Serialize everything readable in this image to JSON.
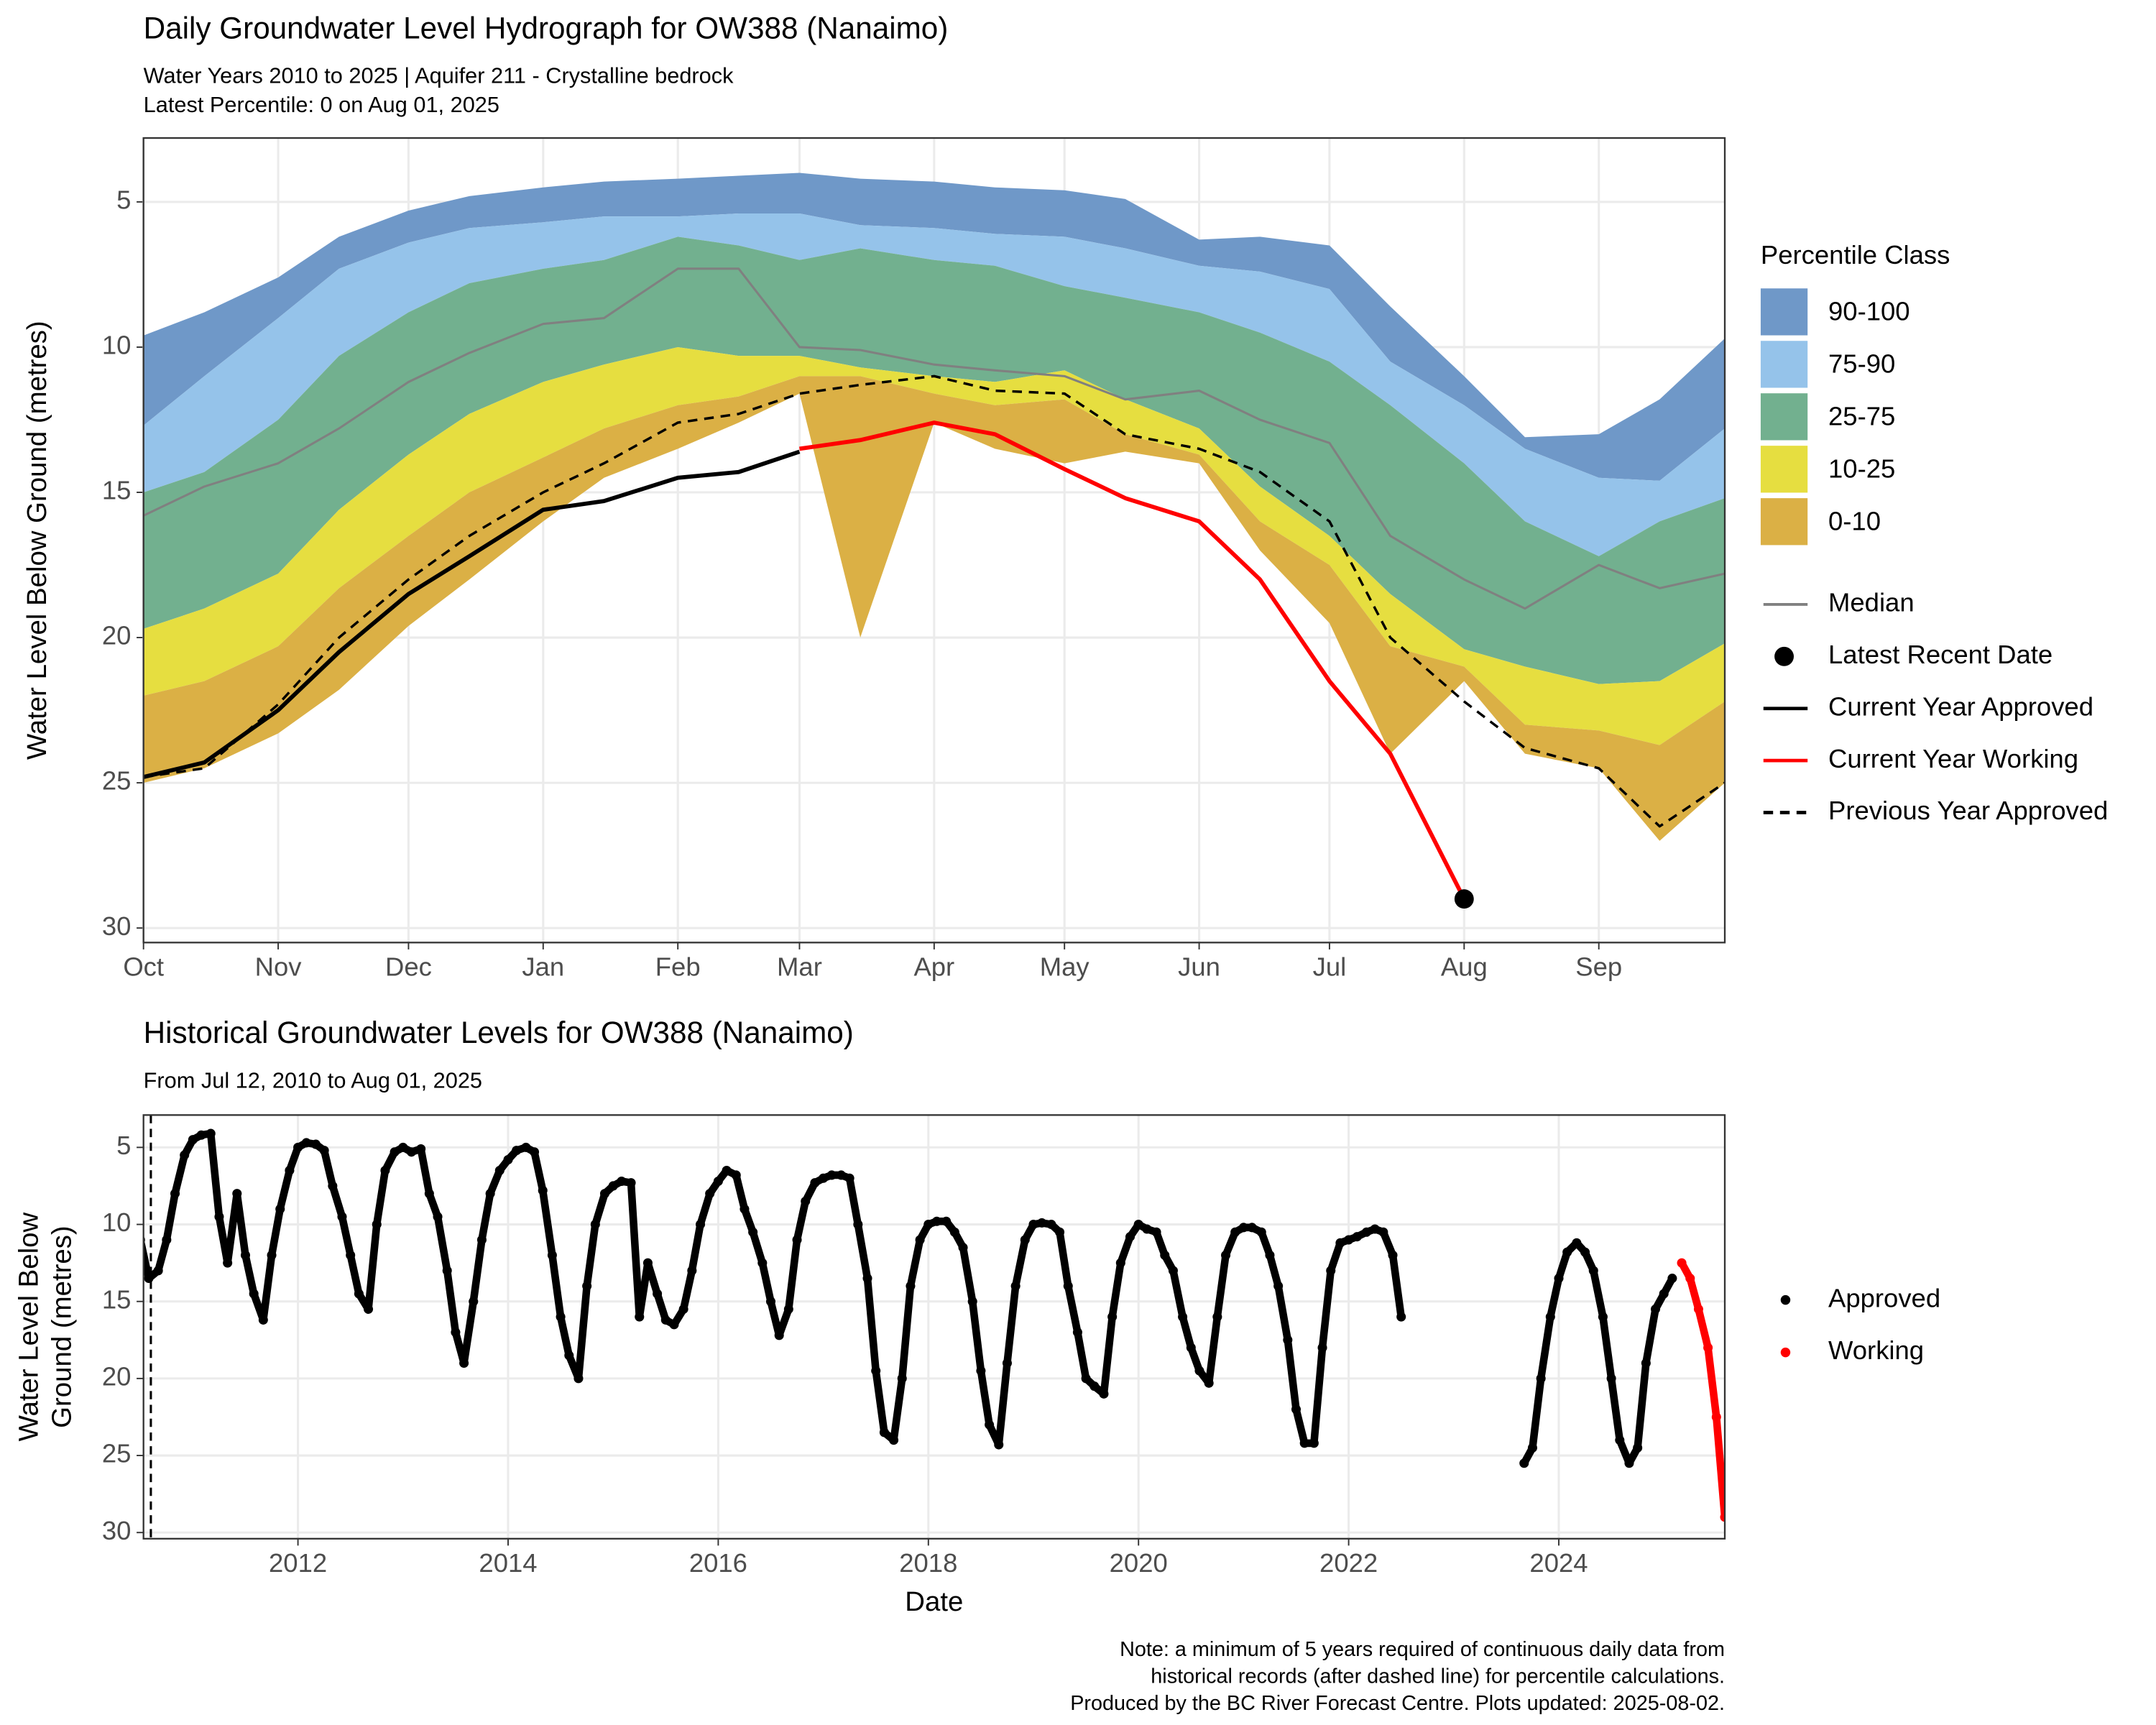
{
  "chart_data": [
    {
      "type": "area",
      "title": "Daily Groundwater Level Hydrograph for OW388 (Nanaimo)",
      "subtitle": [
        "Water Years 2010 to 2025 | Aquifer 211 - Crystalline bedrock",
        "Latest Percentile: 0 on Aug 01, 2025"
      ],
      "y_label": "Water Level Below Ground (metres)",
      "x": [
        "2024-10-01",
        "2024-10-15",
        "2024-11-01",
        "2024-11-15",
        "2024-12-01",
        "2024-12-15",
        "2025-01-01",
        "2025-01-15",
        "2025-02-01",
        "2025-02-15",
        "2025-03-01",
        "2025-03-15",
        "2025-04-01",
        "2025-04-15",
        "2025-05-01",
        "2025-05-15",
        "2025-06-01",
        "2025-06-15",
        "2025-07-01",
        "2025-07-15",
        "2025-08-01",
        "2025-08-15",
        "2025-09-01",
        "2025-09-15",
        "2025-09-30"
      ],
      "xlim": [
        "2024-10-01",
        "2025-09-30"
      ],
      "xticks": [
        {
          "value": "2024-10-01",
          "label": "Oct"
        },
        {
          "value": "2024-11-01",
          "label": "Nov"
        },
        {
          "value": "2024-12-01",
          "label": "Dec"
        },
        {
          "value": "2025-01-01",
          "label": "Jan"
        },
        {
          "value": "2025-02-01",
          "label": "Feb"
        },
        {
          "value": "2025-03-01",
          "label": "Mar"
        },
        {
          "value": "2025-04-01",
          "label": "Apr"
        },
        {
          "value": "2025-05-01",
          "label": "May"
        },
        {
          "value": "2025-06-01",
          "label": "Jun"
        },
        {
          "value": "2025-07-01",
          "label": "Jul"
        },
        {
          "value": "2025-08-01",
          "label": "Aug"
        },
        {
          "value": "2025-09-01",
          "label": "Sep"
        }
      ],
      "ylim": [
        2.8,
        30.5
      ],
      "yticks": [
        5,
        10,
        15,
        20,
        25,
        30
      ],
      "y_reversed": true,
      "grid": true,
      "legend_title": "Percentile Class",
      "bands": [
        {
          "name": "90-100",
          "color": "#6f98c8",
          "upper": [
            9.6,
            8.8,
            7.6,
            6.2,
            5.3,
            4.8,
            4.5,
            4.3,
            4.2,
            4.1,
            4.0,
            4.2,
            4.3,
            4.5,
            4.6,
            4.9,
            6.3,
            6.2,
            6.5,
            8.6,
            11.0,
            13.1,
            13.0,
            11.8,
            9.7
          ],
          "values": [
            12.7,
            11.0,
            9.0,
            7.3,
            6.4,
            5.9,
            5.7,
            5.5,
            5.5,
            5.4,
            5.4,
            5.8,
            5.9,
            6.1,
            6.2,
            6.6,
            7.2,
            7.4,
            8.0,
            10.5,
            12.0,
            13.5,
            14.5,
            14.6,
            12.8
          ]
        },
        {
          "name": "75-90",
          "color": "#95c3ea",
          "values": [
            15.0,
            14.3,
            12.5,
            10.3,
            8.8,
            7.8,
            7.3,
            7.0,
            6.2,
            6.5,
            7.0,
            6.6,
            7.0,
            7.2,
            7.9,
            8.3,
            8.8,
            9.5,
            10.5,
            12.0,
            14.0,
            16.0,
            17.2,
            16.0,
            15.2
          ]
        },
        {
          "name": "25-75",
          "color": "#72b08f",
          "values": [
            19.7,
            19.0,
            17.8,
            15.6,
            13.7,
            12.3,
            11.2,
            10.6,
            10.0,
            10.3,
            10.3,
            10.7,
            11.0,
            11.2,
            10.8,
            11.8,
            12.8,
            14.8,
            16.5,
            18.5,
            20.4,
            21.0,
            21.6,
            21.5,
            20.2
          ]
        },
        {
          "name": "10-25",
          "color": "#e6de40",
          "values": [
            22.0,
            21.5,
            20.3,
            18.3,
            16.5,
            15.0,
            13.8,
            12.8,
            12.0,
            11.7,
            11.0,
            11.0,
            11.6,
            12.0,
            11.8,
            13.0,
            13.7,
            16.0,
            17.5,
            20.3,
            21.0,
            23.0,
            23.2,
            23.7,
            22.2
          ]
        },
        {
          "name": "0-10",
          "color": "#dbb045",
          "values": [
            25.0,
            24.5,
            23.3,
            21.8,
            19.6,
            18.0,
            16.0,
            14.5,
            13.5,
            12.6,
            11.6,
            20.0,
            12.6,
            13.5,
            14.0,
            13.6,
            14.0,
            17.0,
            19.5,
            24.0,
            21.5,
            24.0,
            24.5,
            27.0,
            25.0
          ]
        }
      ],
      "series": [
        {
          "name": "Median",
          "color": "#808080",
          "values": [
            15.8,
            14.8,
            14.0,
            12.8,
            11.2,
            10.2,
            9.2,
            9.0,
            7.3,
            7.3,
            10.0,
            10.1,
            10.6,
            10.8,
            11.0,
            11.8,
            11.5,
            12.5,
            13.3,
            16.5,
            18.0,
            19.0,
            17.5,
            18.3,
            17.8
          ]
        },
        {
          "name": "Current Year Approved",
          "color": "#000000",
          "values": [
            24.8,
            24.3,
            22.5,
            20.5,
            18.5,
            17.2,
            15.6,
            15.3,
            14.5,
            14.3,
            13.6,
            null,
            null,
            null,
            null,
            null,
            null,
            null,
            null,
            null,
            null,
            null,
            null,
            null,
            null
          ]
        },
        {
          "name": "Current Year Working",
          "color": "#ff0000",
          "values": [
            null,
            null,
            null,
            null,
            null,
            null,
            null,
            null,
            null,
            null,
            13.5,
            13.2,
            12.6,
            13.0,
            14.2,
            15.2,
            16.0,
            18.0,
            21.5,
            24.0,
            29.0,
            null,
            null,
            null,
            null
          ]
        },
        {
          "name": "Previous Year Approved",
          "color": "#000000",
          "dashed": true,
          "values": [
            24.8,
            24.5,
            22.3,
            20.0,
            18.0,
            16.5,
            15.0,
            14.0,
            12.6,
            12.3,
            11.6,
            11.3,
            11.0,
            11.5,
            11.6,
            13.0,
            13.5,
            14.3,
            16.0,
            20.0,
            22.2,
            23.8,
            24.5,
            26.5,
            25.0
          ]
        }
      ],
      "marker": {
        "name": "Latest Recent Date",
        "x": "2025-08-01",
        "value": 29.0,
        "color": "#000000"
      }
    },
    {
      "type": "scatter",
      "title": "Historical Groundwater Levels for OW388 (Nanaimo)",
      "subtitle": [
        "From Jul 12, 2010 to Aug 01, 2025"
      ],
      "y_label": [
        "Water Level Below",
        "Ground (metres)"
      ],
      "x_label": "Date",
      "xlim": [
        2010.53,
        2025.58
      ],
      "xticks": [
        2012,
        2014,
        2016,
        2018,
        2020,
        2022,
        2024
      ],
      "ylim": [
        2.9,
        30.4
      ],
      "yticks": [
        5,
        10,
        15,
        20,
        25,
        30
      ],
      "y_reversed": true,
      "grid": true,
      "reference_x": 2010.6,
      "series": [
        {
          "name": "Approved",
          "color": "#000000",
          "x": [
            2010.5,
            2010.58,
            2010.67,
            2010.75,
            2010.83,
            2010.92,
            2011.0,
            2011.08,
            2011.17,
            2011.25,
            2011.33,
            2011.42,
            2011.5,
            2011.58,
            2011.67,
            2011.75,
            2011.83,
            2011.92,
            2012.0,
            2012.08,
            2012.17,
            2012.25,
            2012.33,
            2012.42,
            2012.5,
            2012.58,
            2012.67,
            2012.75,
            2012.83,
            2012.92,
            2013.0,
            2013.08,
            2013.17,
            2013.25,
            2013.33,
            2013.42,
            2013.5,
            2013.58,
            2013.67,
            2013.75,
            2013.83,
            2013.92,
            2014.0,
            2014.08,
            2014.17,
            2014.25,
            2014.33,
            2014.42,
            2014.5,
            2014.58,
            2014.67,
            2014.75,
            2014.83,
            2014.92,
            2015.0,
            2015.08,
            2015.17,
            2015.25,
            2015.33,
            2015.42,
            2015.5,
            2015.58,
            2015.67,
            2015.75,
            2015.83,
            2015.92,
            2016.0,
            2016.08,
            2016.17,
            2016.25,
            2016.33,
            2016.42,
            2016.5,
            2016.58,
            2016.67,
            2016.75,
            2016.83,
            2016.92,
            2017.0,
            2017.08,
            2017.17,
            2017.25,
            2017.33,
            2017.42,
            2017.5,
            2017.58,
            2017.67,
            2017.75,
            2017.83,
            2017.92,
            2018.0,
            2018.08,
            2018.17,
            2018.25,
            2018.33,
            2018.42,
            2018.5,
            2018.58,
            2018.67,
            2018.75,
            2018.83,
            2018.92,
            2019.0,
            2019.08,
            2019.17,
            2019.25,
            2019.33,
            2019.42,
            2019.5,
            2019.58,
            2019.67,
            2019.75,
            2019.83,
            2019.92,
            2020.0,
            2020.08,
            2020.17,
            2020.25,
            2020.33,
            2020.42,
            2020.5,
            2020.58,
            2020.67,
            2020.75,
            2020.83,
            2020.92,
            2021.0,
            2021.08,
            2021.17,
            2021.25,
            2021.33,
            2021.42,
            2021.5,
            2021.58,
            2021.67,
            2021.75,
            2021.83,
            2021.92,
            2022.0,
            2022.08,
            2022.17,
            2022.25,
            2022.33,
            2022.42,
            2022.5,
            2023.0,
            2023.67,
            2023.75,
            2023.83,
            2023.92,
            2024.0,
            2024.08,
            2024.17,
            2024.25,
            2024.33,
            2024.42,
            2024.5,
            2024.58,
            2024.67,
            2024.75,
            2024.83,
            2024.92,
            2025.0,
            2025.08
          ],
          "values": [
            11,
            13.5,
            13,
            11,
            8,
            5.5,
            4.5,
            4.2,
            4.1,
            9.5,
            12.5,
            8,
            12,
            14.5,
            16.2,
            12,
            9,
            6.5,
            5,
            4.7,
            4.8,
            5.2,
            7.5,
            9.5,
            12,
            14.5,
            15.5,
            10,
            6.5,
            5.3,
            5,
            5.3,
            5.1,
            8,
            9.5,
            13,
            17,
            19,
            15,
            11,
            8,
            6.5,
            5.8,
            5.2,
            5,
            5.3,
            7.8,
            12,
            16,
            18.5,
            20,
            14,
            10,
            8,
            7.5,
            7.2,
            7.3,
            16,
            12.5,
            14.5,
            16.2,
            16.5,
            15.5,
            13,
            10,
            8,
            7.2,
            6.5,
            6.8,
            9,
            10.5,
            12.5,
            15,
            17.2,
            15.5,
            11,
            8.5,
            7.3,
            7,
            6.8,
            6.8,
            7,
            10,
            13.5,
            19.5,
            23.5,
            24,
            20,
            14,
            11,
            10,
            9.8,
            9.8,
            10.5,
            11.5,
            15,
            19.5,
            23,
            24.3,
            19,
            14,
            11,
            10,
            9.9,
            10,
            10.5,
            14,
            17,
            20,
            20.5,
            21,
            16,
            12.5,
            10.8,
            10,
            10.3,
            10.5,
            12,
            13,
            16,
            18,
            19.5,
            20.3,
            16,
            12,
            10.5,
            10.2,
            10.2,
            10.5,
            12,
            14,
            17.5,
            22,
            24.2,
            24.2,
            18,
            13,
            11.2,
            11,
            10.8,
            10.5,
            10.3,
            10.5,
            12,
            16,
            null,
            25.5,
            24.5,
            20,
            16,
            13.5,
            11.8,
            11.2,
            11.8,
            13,
            16,
            20,
            24,
            25.5,
            24.5,
            19,
            15.5,
            14.5,
            13.5
          ]
        },
        {
          "name": "Working",
          "color": "#ff0000",
          "x": [
            2025.17,
            2025.25,
            2025.33,
            2025.42,
            2025.5,
            2025.58
          ],
          "values": [
            12.5,
            13.5,
            15.5,
            18,
            22.5,
            29
          ]
        }
      ]
    }
  ],
  "note": [
    "Note: a minimum of 5 years required of continuous daily data from",
    "historical records (after dashed line) for percentile calculations.",
    "Produced by the BC River Forecast Centre. Plots updated: 2025-08-02."
  ]
}
